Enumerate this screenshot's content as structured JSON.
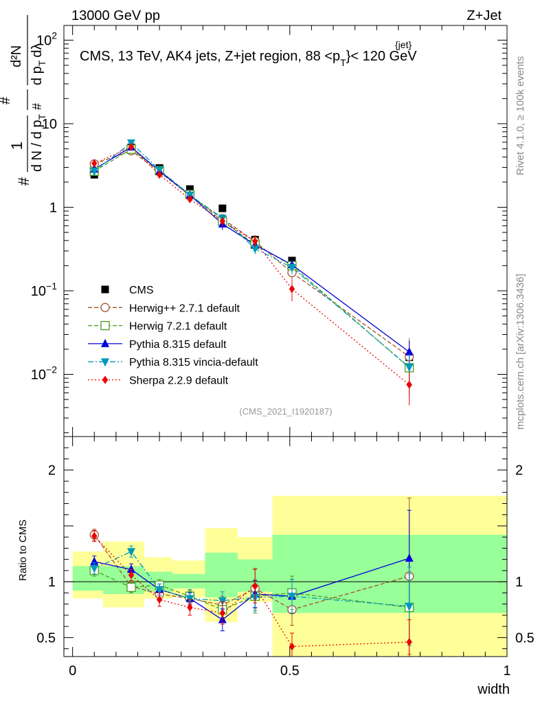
{
  "header": {
    "energy": "13000 GeV pp",
    "process": "Z+Jet",
    "title": "CMS, 13 TeV, AK4 jets, Z+jet region, 88 <p",
    "title_sup": "{jet}",
    "title_sub": "T",
    "title_end": "}< 120 GeV",
    "analysis_id": "(CMS_2021_I1920187)",
    "side_rivet": "Rivet 4.1.0, ≥ 100k events",
    "side_mcplots": "mcplots.cern.ch [arXiv:1306.3436]"
  },
  "axes": {
    "xlabel": "width",
    "ylabel_main": "# 1/(dN / d p_T #) d²N/(d p_T dλ)",
    "ylabel_ratio": "Ratio to CMS",
    "ylabel_parts": {
      "hash": "#",
      "one": "1",
      "dN": "d N / d p",
      "T": "T",
      "d2N": "d²N",
      "dpT": "d p",
      "dlam": "dλ"
    },
    "xlim": [
      -0.02,
      1.0
    ],
    "ylim_main": [
      0.0018,
      150
    ],
    "ylim_ratio": [
      0.33,
      2.3
    ],
    "x_ticks": [
      0,
      0.5,
      1
    ],
    "x_tick_labels": [
      "0",
      "0.5",
      "1"
    ],
    "main_tick_labels": [
      {
        "v": 100,
        "base": "10",
        "exp": "2"
      },
      {
        "v": 10,
        "base": "10",
        "exp": ""
      },
      {
        "v": 1,
        "base": "1",
        "exp": ""
      },
      {
        "v": 0.1,
        "base": "10",
        "exp": "−1"
      },
      {
        "v": 0.01,
        "base": "10",
        "exp": "−2"
      }
    ],
    "ratio_tick_labels": [
      {
        "v": 2,
        "label": "2"
      },
      {
        "v": 1,
        "label": "1"
      },
      {
        "v": 0.5,
        "label": "0.5"
      }
    ]
  },
  "chart_data": {
    "type": "scatter",
    "x": [
      0.05,
      0.135,
      0.2,
      0.27,
      0.345,
      0.42,
      0.505,
      0.775
    ],
    "bin_edges": [
      0.0,
      0.1,
      0.17,
      0.23,
      0.3,
      0.38,
      0.46,
      0.55,
      1.0
    ],
    "band_edges": [
      0.0,
      0.07,
      0.165,
      0.23,
      0.305,
      0.38,
      0.46,
      1.0
    ],
    "cms": {
      "name": "CMS",
      "values": [
        2.45,
        5.2,
        2.95,
        1.65,
        0.97,
        0.41,
        0.23,
        0.016
      ],
      "stat_band_lo": [
        0.92,
        0.89,
        0.91,
        0.94,
        0.86,
        0.91,
        0.72,
        0.72
      ],
      "stat_band_hi": [
        1.14,
        1.14,
        1.09,
        1.07,
        1.26,
        1.2,
        1.42,
        1.42
      ],
      "tot_band_lo": [
        0.85,
        0.77,
        0.85,
        0.86,
        0.64,
        0.82,
        0.33,
        0.33
      ],
      "tot_band_hi": [
        1.27,
        1.36,
        1.22,
        1.19,
        1.48,
        1.4,
        1.77,
        1.77
      ]
    },
    "series": [
      {
        "name": "Herwig++ 2.7.1 default",
        "color": "#a0522d",
        "marker": "open-circle",
        "dash": "6,3",
        "values": [
          3.3,
          4.75,
          2.65,
          1.38,
          0.73,
          0.39,
          0.165,
          0.0163
        ],
        "ratio": [
          1.42,
          0.96,
          0.89,
          0.85,
          0.79,
          0.94,
          0.75,
          1.05
        ],
        "ratio_err": [
          0.05,
          0.05,
          0.05,
          0.06,
          0.08,
          0.18,
          0.14,
          0.7
        ]
      },
      {
        "name": "Herwig 7.2.1 default",
        "color": "#4b9e1e",
        "marker": "open-square",
        "dash": "6,3",
        "values": [
          2.7,
          4.95,
          2.75,
          1.42,
          0.68,
          0.36,
          0.2,
          0.012
        ],
        "ratio": [
          1.1,
          0.95,
          0.97,
          0.87,
          0.75,
          0.87,
          0.9,
          0.77
        ],
        "ratio_err": [
          0.05,
          0.05,
          0.05,
          0.05,
          0.1,
          0.15,
          0.15,
          0.3
        ]
      },
      {
        "name": "Pythia 8.315 default",
        "color": "#0000dd",
        "marker": "triangle-up",
        "dash": "",
        "values": [
          2.85,
          5.25,
          2.7,
          1.4,
          0.63,
          0.355,
          0.205,
          0.0185
        ],
        "ratio": [
          1.18,
          1.11,
          0.93,
          0.85,
          0.66,
          0.89,
          0.87,
          1.21
        ],
        "ratio_err": [
          0.05,
          0.05,
          0.05,
          0.05,
          0.1,
          0.12,
          0.15,
          0.43
        ]
      },
      {
        "name": "Pythia 8.315 vincia-default",
        "color": "#0099bb",
        "marker": "triangle-down",
        "dash": "8,3,2,3",
        "values": [
          2.7,
          5.9,
          2.8,
          1.4,
          0.74,
          0.32,
          0.19,
          0.0122
        ],
        "ratio": [
          1.12,
          1.27,
          0.93,
          0.85,
          0.83,
          0.86,
          0.87,
          0.78
        ],
        "ratio_err": [
          0.05,
          0.05,
          0.05,
          0.08,
          0.08,
          0.12,
          0.15,
          0.35
        ]
      },
      {
        "name": "Sherpa 2.2.9 default",
        "color": "#ee0000",
        "marker": "diamond",
        "dash": "2,3",
        "values": [
          3.35,
          5.25,
          2.45,
          1.25,
          0.68,
          0.39,
          0.105,
          0.0075
        ],
        "ratio": [
          1.41,
          1.06,
          0.84,
          0.77,
          0.72,
          0.96,
          0.42,
          0.46
        ],
        "ratio_err": [
          0.05,
          0.05,
          0.06,
          0.07,
          0.1,
          0.15,
          0.12,
          0.2
        ]
      }
    ]
  }
}
